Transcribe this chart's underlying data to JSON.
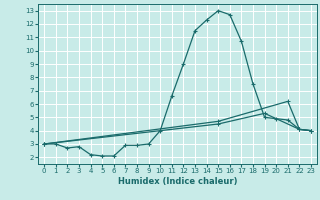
{
  "xlabel": "Humidex (Indice chaleur)",
  "bg_color": "#c8ebe8",
  "grid_color": "#ffffff",
  "line_color": "#1a6b6b",
  "xlim": [
    -0.5,
    23.5
  ],
  "ylim": [
    1.5,
    13.5
  ],
  "xticks": [
    0,
    1,
    2,
    3,
    4,
    5,
    6,
    7,
    8,
    9,
    10,
    11,
    12,
    13,
    14,
    15,
    16,
    17,
    18,
    19,
    20,
    21,
    22,
    23
  ],
  "yticks": [
    2,
    3,
    4,
    5,
    6,
    7,
    8,
    9,
    10,
    11,
    12,
    13
  ],
  "line1_x": [
    0,
    1,
    2,
    3,
    4,
    5,
    6,
    7,
    8,
    9,
    10,
    11,
    12,
    13,
    14,
    15,
    16,
    17,
    18,
    19,
    20,
    21,
    22,
    23
  ],
  "line1_y": [
    3.0,
    3.0,
    2.7,
    2.8,
    2.2,
    2.1,
    2.1,
    2.9,
    2.9,
    3.0,
    4.0,
    6.6,
    9.0,
    11.5,
    12.3,
    13.0,
    12.7,
    10.7,
    7.5,
    5.0,
    4.9,
    4.8,
    4.1,
    4.0
  ],
  "line2_x": [
    0,
    15,
    21,
    22,
    23
  ],
  "line2_y": [
    3.0,
    4.7,
    6.2,
    4.1,
    4.0
  ],
  "line3_x": [
    0,
    15,
    19,
    22,
    23
  ],
  "line3_y": [
    3.0,
    4.5,
    5.3,
    4.1,
    4.0
  ]
}
